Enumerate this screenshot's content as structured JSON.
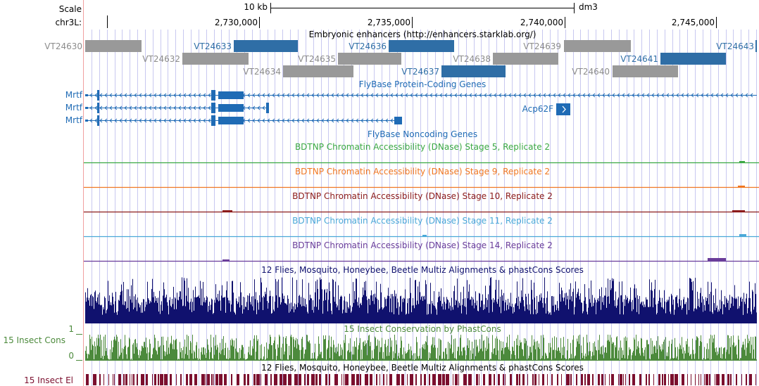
{
  "ruler": {
    "scale_label": "Scale",
    "chrom_label": "chr3L:",
    "scale_bar_label": "10 kb",
    "assembly": "dm3",
    "ticks": [
      "2,730,000",
      "2,735,000",
      "2,740,000",
      "2,745,000"
    ]
  },
  "enhancers": {
    "title": "Embryonic enhancers (http://enhancers.starklab.org/)",
    "items": [
      {
        "id": "VT24630",
        "row": 0,
        "color": "gray"
      },
      {
        "id": "VT24633",
        "row": 0,
        "color": "blue"
      },
      {
        "id": "VT24636",
        "row": 0,
        "color": "blue"
      },
      {
        "id": "VT24639",
        "row": 0,
        "color": "gray"
      },
      {
        "id": "VT24643",
        "row": 0,
        "color": "blue"
      },
      {
        "id": "VT24632",
        "row": 1,
        "color": "gray"
      },
      {
        "id": "VT24635",
        "row": 1,
        "color": "gray"
      },
      {
        "id": "VT24638",
        "row": 1,
        "color": "gray"
      },
      {
        "id": "VT24641",
        "row": 1,
        "color": "blue"
      },
      {
        "id": "VT24634",
        "row": 2,
        "color": "gray"
      },
      {
        "id": "VT24637",
        "row": 2,
        "color": "blue"
      },
      {
        "id": "VT24640",
        "row": 2,
        "color": "gray"
      }
    ]
  },
  "genes": {
    "title": "FlyBase Protein-Coding Genes",
    "transcripts": [
      "Mrtf",
      "Mrtf",
      "Mrtf"
    ],
    "other_gene": "Acp62F"
  },
  "noncoding": {
    "title": "FlyBase Noncoding Genes"
  },
  "dnase_tracks": [
    {
      "label": "BDTNP Chromatin Accessibility (DNase) Stage 5, Replicate 2",
      "color": "#3aa843"
    },
    {
      "label": "BDTNP Chromatin Accessibility (DNase) Stage 9, Replicate 2",
      "color": "#f07722"
    },
    {
      "label": "BDTNP Chromatin Accessibility (DNase) Stage 10, Replicate 2",
      "color": "#8b1a1a"
    },
    {
      "label": "BDTNP Chromatin Accessibility (DNase) Stage 11, Replicate 2",
      "color": "#4aa8d8"
    },
    {
      "label": "BDTNP Chromatin Accessibility (DNase) Stage 14, Replicate 2",
      "color": "#6a3d9a"
    }
  ],
  "multiz": {
    "title": "12 Flies, Mosquito, Honeybee, Beetle Multiz Alignments & phastCons Scores",
    "color": "#10116e"
  },
  "phastcons": {
    "title": "15 Insect Conservation by PhastCons",
    "side_label": "15 Insect Cons",
    "y_max_label": "1",
    "y_min_label": "0",
    "color": "#4c8a3c"
  },
  "elements": {
    "title": "12 Flies, Mosquito, Honeybee, Beetle Multiz Alignments & phastCons Scores",
    "side_label": "15 Insect El",
    "color": "#7b0f2e"
  },
  "colors": {
    "gene_blue": "#1f6bb5",
    "enh_blue": "#2f6ea6",
    "enh_gray": "#999999",
    "enh_gray_text": "#8c8c8c",
    "grid": "#c8c8f0",
    "left_border": "#f0a0a0"
  }
}
